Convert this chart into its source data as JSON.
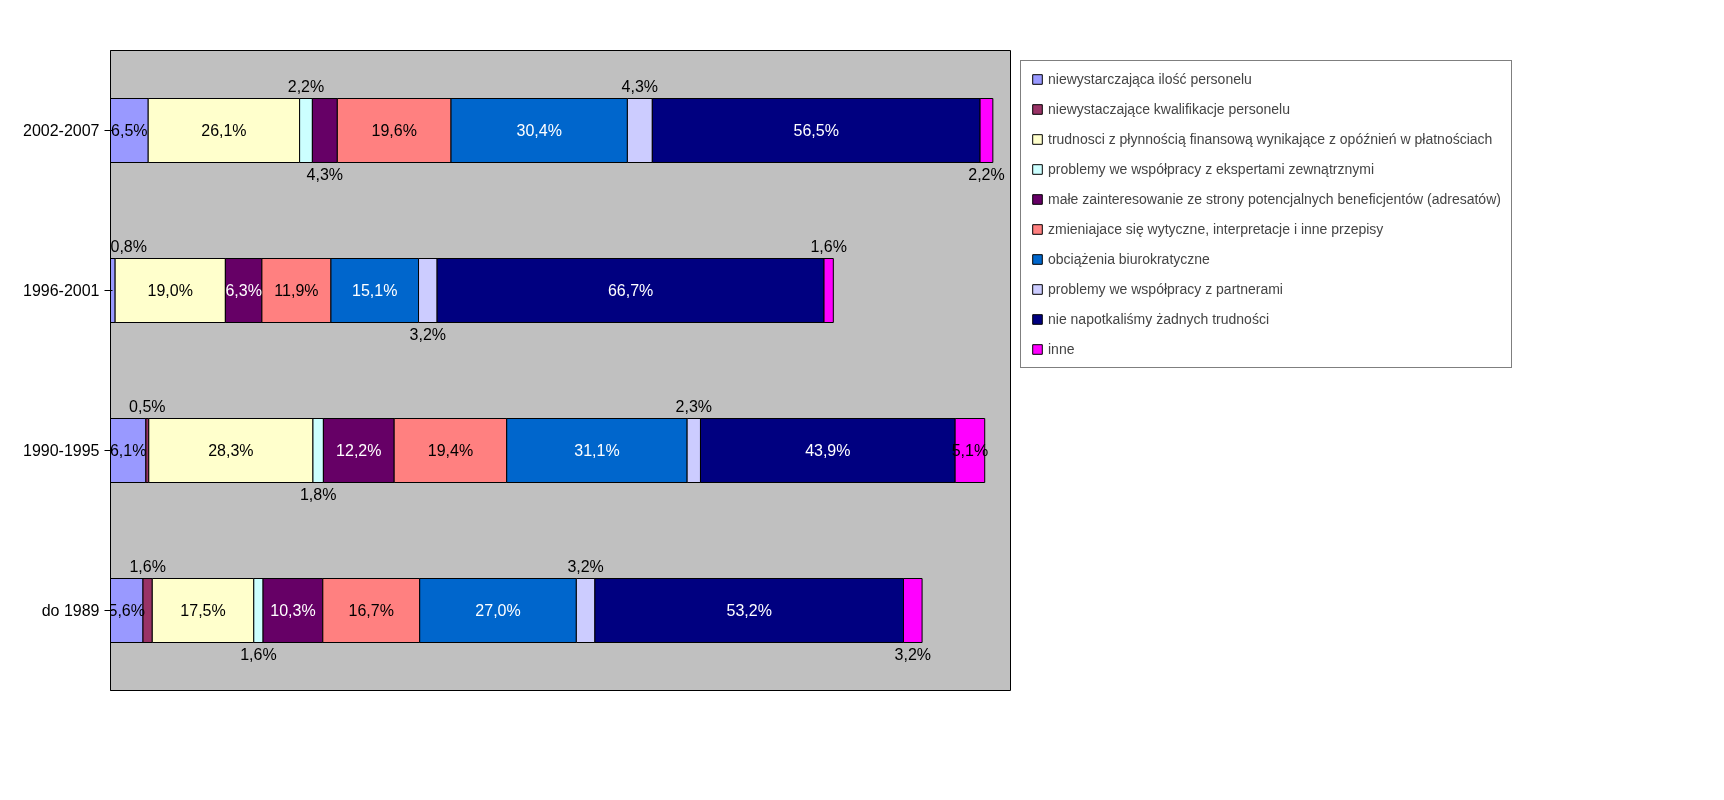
{
  "chart_data": {
    "type": "bar",
    "orientation": "horizontal",
    "stacked": true,
    "categories": [
      "2002-2007",
      "1996-2001",
      "1990-1995",
      "do 1989"
    ],
    "series": [
      {
        "name": "niewystarczająca ilość personelu",
        "color": "#9999ff",
        "values": [
          6.5,
          0.8,
          6.1,
          5.6
        ],
        "value_labels": [
          "6,5%",
          "0,8%",
          "6,1%",
          "5,6%"
        ]
      },
      {
        "name": "niewystaczające kwalifikacje personelu",
        "color": "#993366",
        "values": [
          null,
          null,
          0.5,
          1.6
        ],
        "value_labels": [
          null,
          null,
          "0,5%",
          "1,6%"
        ]
      },
      {
        "name": "trudnosci z płynnością finansową wynikające z opóźnień w płatnościach",
        "color": "#ffffcc",
        "values": [
          26.1,
          19.0,
          28.3,
          17.5
        ],
        "value_labels": [
          "26,1%",
          "19,0%",
          "28,3%",
          "17,5%"
        ]
      },
      {
        "name": "problemy we współpracy z ekspertami zewnątrznymi",
        "color": "#ccffff",
        "values": [
          2.2,
          null,
          1.8,
          1.6
        ],
        "value_labels": [
          "2,2%",
          null,
          "1,8%",
          "1,6%"
        ]
      },
      {
        "name": "małe zainteresowanie ze strony potencjalnych beneficjentów (adresatów)",
        "color": "#660066",
        "values": [
          4.3,
          6.3,
          12.2,
          10.3
        ],
        "value_labels": [
          "4,3%",
          "6,3%",
          "12,2%",
          "10,3%"
        ]
      },
      {
        "name": "zmieniajace się wytyczne, interpretacje i inne przepisy",
        "color": "#ff8080",
        "values": [
          19.6,
          11.9,
          19.4,
          16.7
        ],
        "value_labels": [
          "19,6%",
          "11,9%",
          "19,4%",
          "16,7%"
        ]
      },
      {
        "name": "obciążenia biurokratyczne",
        "color": "#0066cc",
        "values": [
          30.4,
          15.1,
          31.1,
          27.0
        ],
        "value_labels": [
          "30,4%",
          "15,1%",
          "31,1%",
          "27,0%"
        ]
      },
      {
        "name": "problemy we współpracy z partnerami",
        "color": "#ccccff",
        "values": [
          4.3,
          3.2,
          2.3,
          3.2
        ],
        "value_labels": [
          "4,3%",
          "3,2%",
          "2,3%",
          "3,2%"
        ]
      },
      {
        "name": "nie napotkaliśmy żadnych trudności",
        "color": "#000080",
        "values": [
          56.5,
          66.7,
          43.9,
          53.2
        ],
        "value_labels": [
          "56,5%",
          "66,7%",
          "43,9%",
          "53,2%"
        ]
      },
      {
        "name": "inne",
        "color": "#ff00ff",
        "values": [
          2.2,
          1.6,
          5.1,
          3.2
        ],
        "value_labels": [
          "2,2%",
          "1,6%",
          "5,1%",
          "3,2%"
        ]
      }
    ],
    "tick_labels": "y",
    "legend": "right"
  }
}
